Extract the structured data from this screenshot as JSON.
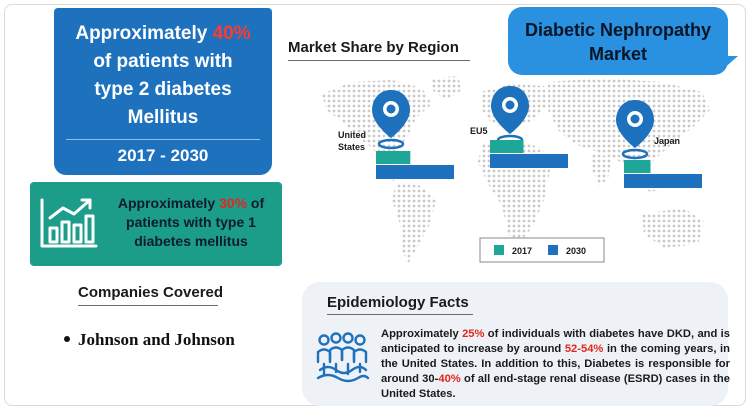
{
  "stat_card": {
    "line1_prefix": "Approximately ",
    "line1_highlight": "40%",
    "line2": "of patients with",
    "line3": "type 2 diabetes",
    "line4": "Mellitus",
    "years": "2017 - 2030"
  },
  "teal_card": {
    "prefix": "Approximately ",
    "highlight": "30%",
    "suffix": " of patients with type 1 diabetes mellitus",
    "icon": "bar-chart-growth-icon"
  },
  "companies": {
    "title": "Companies Covered",
    "items": [
      "Johnson and Johnson"
    ]
  },
  "market_share": {
    "title": "Market Share by Region",
    "regions": [
      {
        "name_line1": "United",
        "name_line2": "States",
        "bar_2017": 0.44,
        "bar_2030": 1.0
      },
      {
        "name_line1": "EU5",
        "name_line2": "",
        "bar_2017": 0.43,
        "bar_2030": 1.0
      },
      {
        "name_line1": "Japan",
        "name_line2": "",
        "bar_2017": 0.34,
        "bar_2030": 1.0
      }
    ],
    "legend": [
      {
        "label": "2017",
        "color": "#1ea698"
      },
      {
        "label": "2030",
        "color": "#1d71bd"
      }
    ]
  },
  "title_bubble": {
    "line1": "Diabetic Nephropathy",
    "line2": "Market"
  },
  "epidemiology": {
    "title": "Epidemiology Facts",
    "t1": "Approximately ",
    "h1": "25%",
    "t2": " of individuals with diabetes have DKD, and is anticipated to increase by around ",
    "h2": "52-54%",
    "t3": " in the coming years, in the United States. In addition to this, Diabetes is responsible for around 30-",
    "h3": "40%",
    "t4": " of all end-stage renal disease (ESRD) cases in the United States.",
    "icon": "population-group-icon"
  },
  "colors": {
    "blue": "#1d71bd",
    "teal": "#1b9d89",
    "highlight_red": "#e0281f",
    "bubble": "#2a90e0"
  }
}
